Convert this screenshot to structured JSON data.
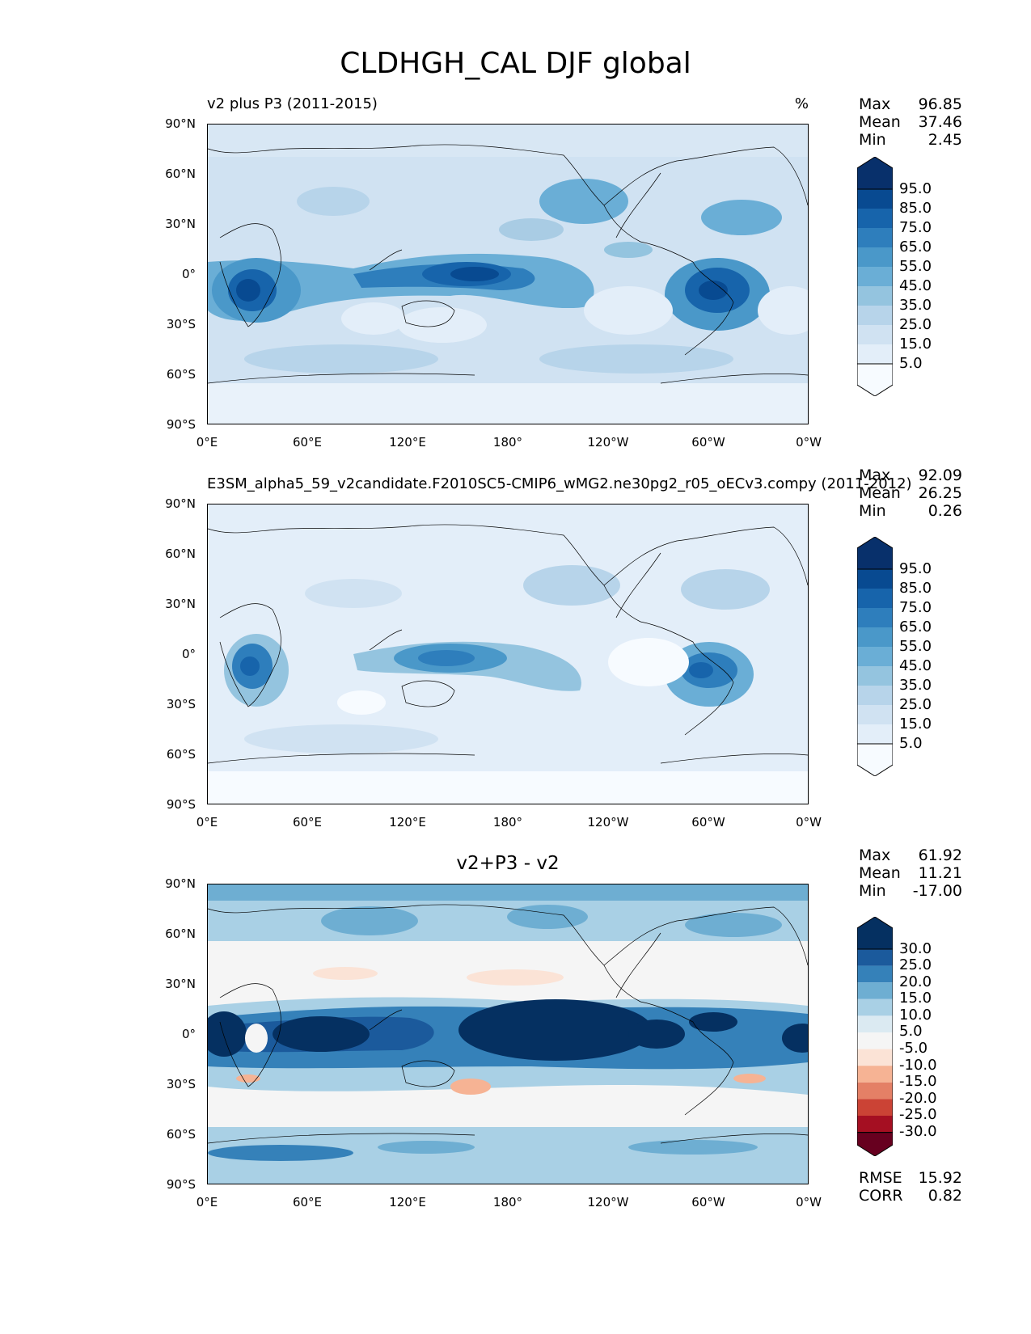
{
  "figure_title": "CLDHGH_CAL DJF global",
  "panels": [
    {
      "title_left": "v2 plus P3 (2011-2015)",
      "title_right": "%",
      "stats": [
        {
          "label": "Max",
          "value": "96.85"
        },
        {
          "label": "Mean",
          "value": "37.46"
        },
        {
          "label": "Min",
          "value": "2.45"
        }
      ],
      "colorbar_labels": [
        "95.0",
        "85.0",
        "75.0",
        "65.0",
        "55.0",
        "45.0",
        "35.0",
        "25.0",
        "15.0",
        "5.0"
      ]
    },
    {
      "title_left": "E3SM_alpha5_59_v2candidate.F2010SC5-CMIP6_wMG2.ne30pg2_r05_oECv3.compy (2011-2012)",
      "stats": [
        {
          "label": "Max",
          "value": "92.09"
        },
        {
          "label": "Mean",
          "value": "26.25"
        },
        {
          "label": "Min",
          "value": "0.26"
        }
      ],
      "colorbar_labels": [
        "95.0",
        "85.0",
        "75.0",
        "65.0",
        "55.0",
        "45.0",
        "35.0",
        "25.0",
        "15.0",
        "5.0"
      ]
    },
    {
      "title_center": "v2+P3 - v2",
      "stats": [
        {
          "label": "Max",
          "value": "61.92"
        },
        {
          "label": "Mean",
          "value": "11.21"
        },
        {
          "label": "Min",
          "value": "-17.00"
        }
      ],
      "colorbar_labels": [
        "30.0",
        "25.0",
        "20.0",
        "15.0",
        "10.0",
        "5.0",
        "-5.0",
        "-10.0",
        "-15.0",
        "-20.0",
        "-25.0",
        "-30.0"
      ],
      "metrics": [
        {
          "label": "RMSE",
          "value": "15.92"
        },
        {
          "label": "CORR",
          "value": "0.82"
        }
      ]
    }
  ],
  "y_ticks": [
    "90°N",
    "60°N",
    "30°N",
    "0°",
    "30°S",
    "60°S",
    "90°S"
  ],
  "x_ticks": [
    "0°E",
    "60°E",
    "120°E",
    "180°",
    "120°W",
    "60°W",
    "0°W"
  ],
  "colors": {
    "blues": [
      "#f7fbff",
      "#e3eef9",
      "#d0e2f2",
      "#b7d4ea",
      "#94c4df",
      "#6aaed6",
      "#4a98c9",
      "#2e7ebc",
      "#1764ab",
      "#084a91",
      "#08306b"
    ],
    "diverging": [
      "#67001f",
      "#a50f22",
      "#cb4335",
      "#e48066",
      "#f6b394",
      "#fbe3d6",
      "#f5f5f5",
      "#dbeaf2",
      "#a9d0e5",
      "#6eaed2",
      "#3581b9",
      "#1b5a9c",
      "#053061"
    ]
  }
}
